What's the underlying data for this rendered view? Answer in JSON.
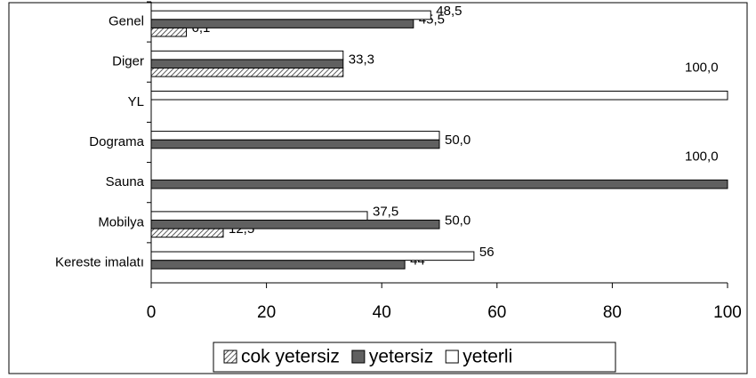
{
  "chart_data": {
    "type": "hbar",
    "categories": [
      "Genel",
      "Diger",
      "YL",
      "Dograma",
      "Sauna",
      "Mobilya",
      "Kereste imalatı"
    ],
    "series": [
      {
        "name": "cok yetersiz",
        "color": "hatch",
        "values": [
          6.1,
          33.3,
          null,
          null,
          null,
          12.5,
          null
        ],
        "value_labels": [
          "6,1",
          null,
          null,
          null,
          null,
          "12,5",
          null
        ]
      },
      {
        "name": "yetersiz",
        "color": "#606060",
        "values": [
          45.5,
          33.3,
          null,
          50,
          100,
          50,
          44
        ],
        "value_labels": [
          "45,5",
          "33,3",
          null,
          "50,0",
          "100,0",
          "50,0",
          "44"
        ]
      },
      {
        "name": "yeterli",
        "color": "#ffffff",
        "values": [
          48.5,
          33.3,
          100,
          50,
          null,
          37.5,
          56
        ],
        "value_labels": [
          "48,5",
          null,
          "100,0",
          null,
          null,
          "37,5",
          "56"
        ]
      }
    ],
    "xlim": [
      0,
      100
    ],
    "xticks": [
      0,
      20,
      40,
      60,
      80,
      100
    ],
    "grid": false,
    "legend": "bottom"
  }
}
